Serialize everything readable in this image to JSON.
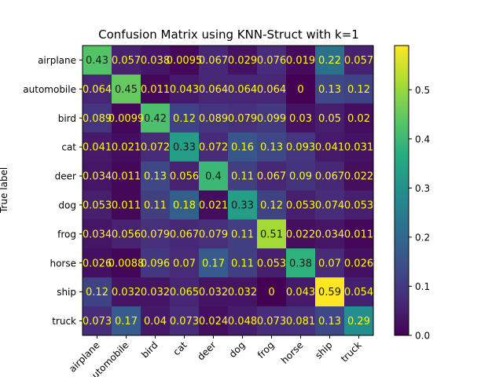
{
  "chart_data": {
    "type": "heatmap",
    "title": "Confusion Matrix using KNN-Struct with k=1",
    "ylabel": "True label",
    "xlabel": "",
    "row_labels": [
      "airplane",
      "automobile",
      "bird",
      "cat",
      "deer",
      "dog",
      "frog",
      "horse",
      "ship",
      "truck"
    ],
    "col_labels": [
      "airplane",
      "automobile",
      "bird",
      "cat",
      "deer",
      "dog",
      "frog",
      "horse",
      "ship",
      "truck"
    ],
    "cell_labels": [
      [
        "0.43",
        "0.057",
        "0.038",
        "0.0095",
        "0.067",
        "0.029",
        "0.076",
        "0.019",
        "0.22",
        "0.057"
      ],
      [
        "0.064",
        "0.45",
        "0.011",
        "0.043",
        "0.064",
        "0.064",
        "0.064",
        "0",
        "0.13",
        "0.12"
      ],
      [
        "0.089",
        "0.0099",
        "0.42",
        "0.12",
        "0.089",
        "0.079",
        "0.099",
        "0.03",
        "0.05",
        "0.02"
      ],
      [
        "0.041",
        "0.021",
        "0.072",
        "0.33",
        "0.072",
        "0.16",
        "0.13",
        "0.093",
        "0.041",
        "0.031"
      ],
      [
        "0.034",
        "0.011",
        "0.13",
        "0.056",
        "0.4",
        "0.11",
        "0.067",
        "0.09",
        "0.067",
        "0.022"
      ],
      [
        "0.053",
        "0.011",
        "0.11",
        "0.18",
        "0.021",
        "0.33",
        "0.12",
        "0.053",
        "0.074",
        "0.053"
      ],
      [
        "0.034",
        "0.056",
        "0.079",
        "0.067",
        "0.079",
        "0.11",
        "0.51",
        "0.022",
        "0.034",
        "0.011"
      ],
      [
        "0.026",
        "0.0088",
        "0.096",
        "0.07",
        "0.17",
        "0.11",
        "0.053",
        "0.38",
        "0.07",
        "0.026"
      ],
      [
        "0.12",
        "0.032",
        "0.032",
        "0.065",
        "0.032",
        "0.032",
        "0",
        "0.043",
        "0.59",
        "0.054"
      ],
      [
        "0.073",
        "0.17",
        "0.04",
        "0.073",
        "0.024",
        "0.048",
        "0.073",
        "0.081",
        "0.13",
        "0.29"
      ]
    ],
    "colorbar": {
      "colormap": "viridis",
      "range": [
        0,
        0.59
      ],
      "ticks": [
        "0.0",
        "0.1",
        "0.2",
        "0.3",
        "0.4",
        "0.5"
      ]
    },
    "grid": false,
    "legend": "colorbar-right"
  },
  "colors": {
    "text_on_dark": "#ffff00",
    "text_on_light": "#1a1a1a",
    "axis": "#000000"
  }
}
